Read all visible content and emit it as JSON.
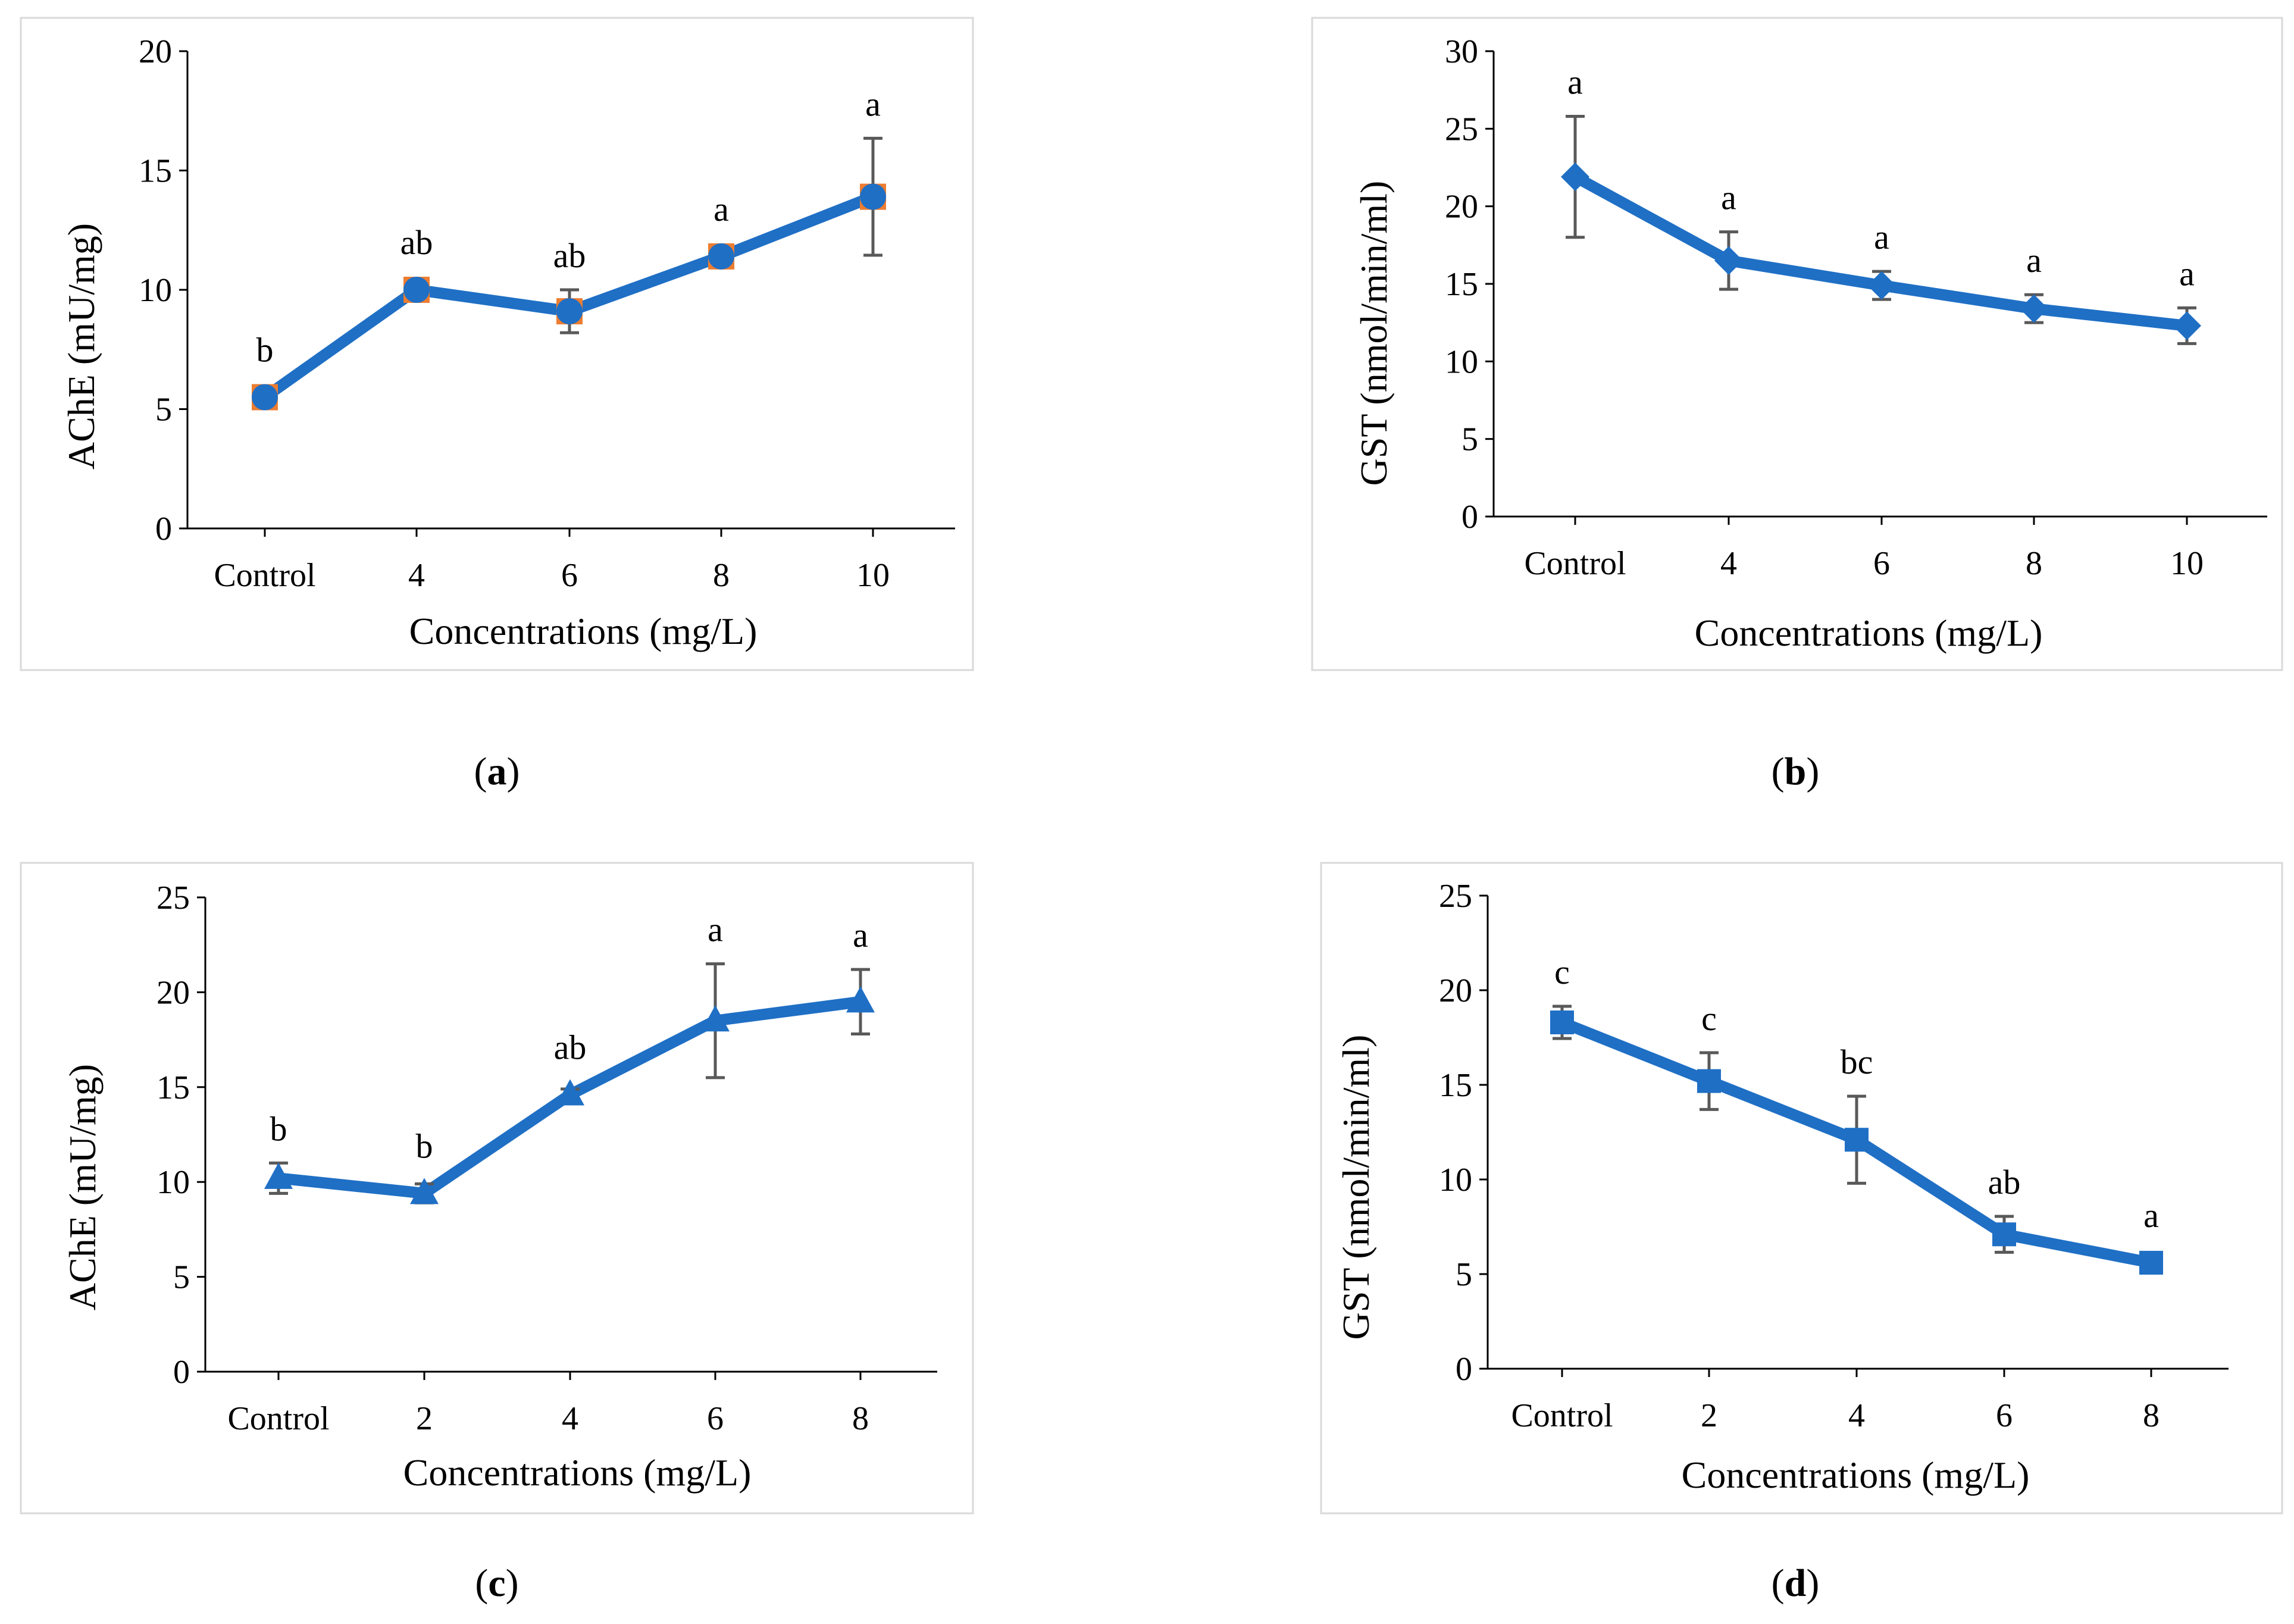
{
  "colors": {
    "series": "#1f6fc5",
    "marker_accent": "#ed7d31",
    "error_bar": "#595959"
  },
  "chart_data": [
    {
      "panel": "a",
      "caption": {
        "open": "(",
        "letter": "a",
        "close": ")"
      },
      "type": "line",
      "marker": "circle",
      "categories": [
        "Control",
        "4",
        "6",
        "8",
        "10"
      ],
      "values": [
        5.5,
        10.0,
        9.1,
        11.4,
        13.9
      ],
      "errors": [
        0.3,
        0.3,
        0.9,
        0.3,
        2.45
      ],
      "significance": [
        "b",
        "ab",
        "ab",
        "a",
        "a"
      ],
      "xlabel": "Concentrations (mg/L)",
      "ylabel": "AChE (mU/mg)",
      "ylim": [
        0,
        20
      ],
      "yticks": [
        "0",
        "5",
        "10",
        "15",
        "20"
      ]
    },
    {
      "panel": "b",
      "caption": {
        "open": "(",
        "letter": "b",
        "close": ")"
      },
      "type": "line",
      "marker": "diamond",
      "categories": [
        "Control",
        "4",
        "6",
        "8",
        "10"
      ],
      "values": [
        21.9,
        16.5,
        14.9,
        13.4,
        12.3
      ],
      "errors": [
        3.9,
        1.85,
        0.9,
        0.9,
        1.15
      ],
      "significance": [
        "a",
        "a",
        "a",
        "a",
        "a"
      ],
      "xlabel": "Concentrations (mg/L)",
      "ylabel": "GST (nmol/min/ml)",
      "ylim": [
        0,
        30
      ],
      "yticks": [
        "0",
        "5",
        "10",
        "15",
        "20",
        "25",
        "30"
      ]
    },
    {
      "panel": "c",
      "caption": {
        "open": "(",
        "letter": "c",
        "close": ")"
      },
      "type": "line",
      "marker": "triangle",
      "categories": [
        "Control",
        "2",
        "4",
        "6",
        "8"
      ],
      "values": [
        10.2,
        9.4,
        14.6,
        18.5,
        19.5
      ],
      "errors": [
        0.8,
        0.5,
        0.3,
        3.0,
        1.7
      ],
      "significance": [
        "b",
        "b",
        "ab",
        "a",
        "a"
      ],
      "xlabel": "Concentrations (mg/L)",
      "ylabel": "AChE (mU/mg)",
      "ylim": [
        0,
        25
      ],
      "yticks": [
        "0",
        "5",
        "10",
        "15",
        "20",
        "25"
      ]
    },
    {
      "panel": "d",
      "caption": {
        "open": "(",
        "letter": "d",
        "close": ")"
      },
      "type": "line",
      "marker": "square",
      "categories": [
        "Control",
        "2",
        "4",
        "6",
        "8"
      ],
      "values": [
        18.3,
        15.2,
        12.1,
        7.1,
        5.6
      ],
      "errors": [
        0.85,
        1.5,
        2.3,
        0.95,
        0.2
      ],
      "significance": [
        "c",
        "c",
        "bc",
        "ab",
        "a"
      ],
      "xlabel": "Concentrations (mg/L)",
      "ylabel": "GST (nmol/min/ml)",
      "ylim": [
        0,
        25
      ],
      "yticks": [
        "0",
        "5",
        "10",
        "15",
        "20",
        "25"
      ]
    }
  ]
}
